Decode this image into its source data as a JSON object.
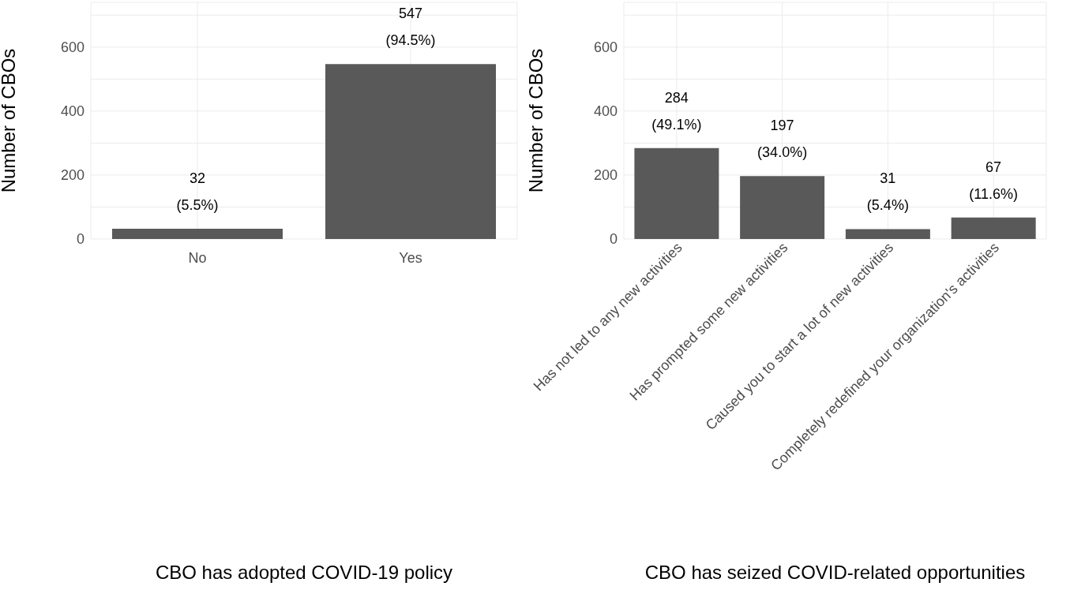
{
  "chart_data": [
    {
      "type": "bar",
      "xlabel": "CBO has adopted COVID-19 policy",
      "ylabel": "Number of CBOs",
      "categories": [
        "No",
        "Yes"
      ],
      "values": [
        32,
        547
      ],
      "color": "#595959",
      "value_labels": [
        "32\n(5.5%)",
        "547\n(94.5%)"
      ],
      "ylim": [
        0,
        740
      ],
      "yticks": [
        0,
        {
          "value": 100,
          "label": null
        },
        200,
        {
          "value": 300,
          "label": null
        },
        400,
        {
          "value": 500,
          "label": null
        },
        600,
        {
          "value": 700,
          "label": null
        }
      ],
      "grid": true
    },
    {
      "type": "bar",
      "xlabel": "CBO has seized COVID-related opportunities",
      "ylabel": "Number of CBOs",
      "categories": [
        "Has not led to any new activities",
        "Has prompted some new activities",
        "Caused you to start a lot of new activities",
        "Completely redefined your organization's activities"
      ],
      "values": [
        284,
        197,
        31,
        67
      ],
      "color": "#595959",
      "value_labels": [
        "284\n(49.1%)",
        "197\n(34.0%)",
        "31\n(5.4%)",
        "67\n(11.6%)"
      ],
      "ylim": [
        0,
        740
      ],
      "yticks": [
        0,
        {
          "value": 100,
          "label": null
        },
        200,
        {
          "value": 300,
          "label": null
        },
        400,
        {
          "value": 500,
          "label": null
        },
        600,
        {
          "value": 700,
          "label": null
        }
      ],
      "grid": true
    }
  ]
}
